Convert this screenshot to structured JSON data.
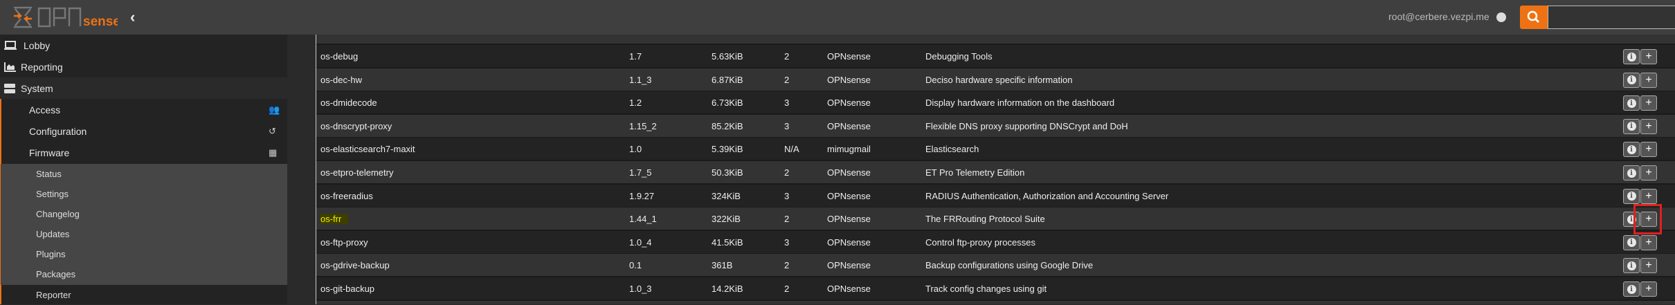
{
  "header": {
    "brand": "OPNsense",
    "brand_color": "#ee7214",
    "user": "root@cerbere.vezpi.me",
    "search_placeholder": "",
    "search_value": ""
  },
  "sidebar": {
    "items": [
      {
        "label": "Lobby",
        "icon": "laptop-icon"
      },
      {
        "label": "Reporting",
        "icon": "area-chart-icon"
      },
      {
        "label": "System",
        "icon": "server-icon"
      }
    ],
    "system_items": [
      {
        "label": "Access",
        "icon": "users-icon"
      },
      {
        "label": "Configuration",
        "icon": "history-icon"
      },
      {
        "label": "Firmware",
        "icon": "building-icon"
      }
    ],
    "firmware_items": [
      {
        "label": "Status"
      },
      {
        "label": "Settings"
      },
      {
        "label": "Changelog"
      },
      {
        "label": "Updates"
      },
      {
        "label": "Plugins"
      },
      {
        "label": "Packages",
        "active": true
      },
      {
        "label": "Reporter"
      }
    ]
  },
  "packages": [
    {
      "name": "os-debug",
      "version": "1.7",
      "size": "5.63KiB",
      "tier": "2",
      "repository": "OPNsense",
      "comment": "Debugging Tools"
    },
    {
      "name": "os-dec-hw",
      "version": "1.1_3",
      "size": "6.87KiB",
      "tier": "2",
      "repository": "OPNsense",
      "comment": "Deciso hardware specific information"
    },
    {
      "name": "os-dmidecode",
      "version": "1.2",
      "size": "6.73KiB",
      "tier": "3",
      "repository": "OPNsense",
      "comment": "Display hardware information on the dashboard"
    },
    {
      "name": "os-dnscrypt-proxy",
      "version": "1.15_2",
      "size": "85.2KiB",
      "tier": "3",
      "repository": "OPNsense",
      "comment": "Flexible DNS proxy supporting DNSCrypt and DoH"
    },
    {
      "name": "os-elasticsearch7-maxit",
      "version": "1.0",
      "size": "5.39KiB",
      "tier": "N/A",
      "repository": "mimugmail",
      "comment": "Elasticsearch"
    },
    {
      "name": "os-etpro-telemetry",
      "version": "1.7_5",
      "size": "50.3KiB",
      "tier": "2",
      "repository": "OPNsense",
      "comment": "ET Pro Telemetry Edition"
    },
    {
      "name": "os-freeradius",
      "version": "1.9.27",
      "size": "324KiB",
      "tier": "3",
      "repository": "OPNsense",
      "comment": "RADIUS Authentication, Authorization and Accounting Server"
    },
    {
      "name": "os-frr",
      "version": "1.44_1",
      "size": "322KiB",
      "tier": "2",
      "repository": "OPNsense",
      "comment": "The FRRouting Protocol Suite",
      "highlighted": true
    },
    {
      "name": "os-ftp-proxy",
      "version": "1.0_4",
      "size": "41.5KiB",
      "tier": "3",
      "repository": "OPNsense",
      "comment": "Control ftp-proxy processes"
    },
    {
      "name": "os-gdrive-backup",
      "version": "0.1",
      "size": "361B",
      "tier": "2",
      "repository": "OPNsense",
      "comment": "Backup configurations using Google Drive"
    },
    {
      "name": "os-git-backup",
      "version": "1.0_3",
      "size": "14.2KiB",
      "tier": "2",
      "repository": "OPNsense",
      "comment": "Track config changes using git"
    }
  ],
  "actions": {
    "info_icon": "info-icon",
    "install_icon": "plus-icon",
    "install_label": "+"
  },
  "annotation": {
    "target": "os-frr install button",
    "color": "#e02020"
  }
}
